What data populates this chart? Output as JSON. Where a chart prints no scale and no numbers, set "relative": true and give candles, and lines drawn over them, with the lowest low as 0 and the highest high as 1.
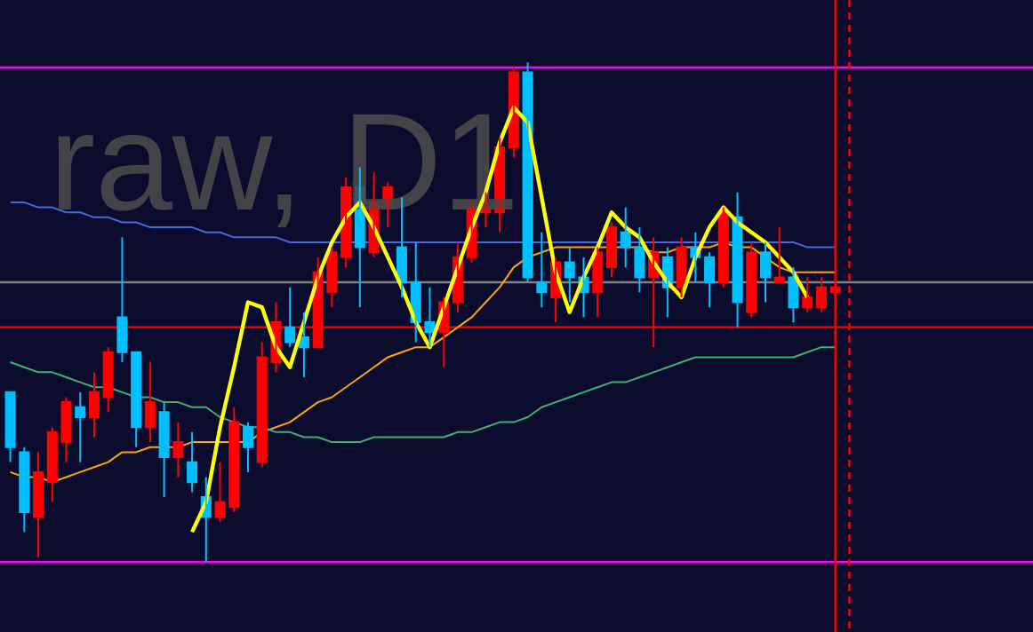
{
  "chart_data": {
    "type": "candlestick",
    "relative": true,
    "annotations": [
      "raw, D1"
    ],
    "marker": "none",
    "line_style": "solid",
    "categories": [
      null,
      null,
      null,
      null,
      null,
      null,
      null,
      null,
      null,
      null,
      null,
      null,
      null,
      null,
      null,
      null,
      null,
      null,
      null,
      null,
      null,
      null,
      null,
      null,
      null,
      null,
      null,
      null,
      null,
      null,
      null,
      null,
      null,
      null,
      null,
      null,
      null,
      null,
      null,
      null,
      null,
      null,
      null,
      null,
      null,
      null,
      null,
      null,
      null,
      null,
      null,
      null,
      null,
      null,
      null,
      null,
      null,
      null,
      null,
      null
    ],
    "ohlc": [
      [
        0.34,
        0.34,
        0.2,
        0.23
      ],
      [
        0.22,
        0.23,
        0.06,
        0.1
      ],
      [
        0.09,
        0.22,
        0.01,
        0.18
      ],
      [
        0.16,
        0.27,
        0.12,
        0.26
      ],
      [
        0.24,
        0.33,
        0.2,
        0.32
      ],
      [
        0.31,
        0.34,
        0.2,
        0.29
      ],
      [
        0.29,
        0.38,
        0.25,
        0.34
      ],
      [
        0.33,
        0.43,
        0.3,
        0.42
      ],
      [
        0.49,
        0.65,
        0.4,
        0.42
      ],
      [
        0.42,
        0.42,
        0.23,
        0.27
      ],
      [
        0.27,
        0.4,
        0.24,
        0.32
      ],
      [
        0.3,
        0.32,
        0.13,
        0.21
      ],
      [
        0.21,
        0.28,
        0.17,
        0.24
      ],
      [
        0.2,
        0.26,
        0.14,
        0.16
      ],
      [
        0.13,
        0.17,
        0,
        0.09
      ],
      [
        0.09,
        0.2,
        0.08,
        0.12
      ],
      [
        0.11,
        0.31,
        0.1,
        0.28
      ],
      [
        0.27,
        0.28,
        0.18,
        0.23
      ],
      [
        0.2,
        0.44,
        0.19,
        0.41
      ],
      [
        0.4,
        0.52,
        0.38,
        0.48
      ],
      [
        0.47,
        0.55,
        0.43,
        0.44
      ],
      [
        0.45,
        0.5,
        0.37,
        0.43
      ],
      [
        0.43,
        0.61,
        0.43,
        0.58
      ],
      [
        0.54,
        0.63,
        0.51,
        0.62
      ],
      [
        0.61,
        0.77,
        0.59,
        0.75
      ],
      [
        0.75,
        0.79,
        0.51,
        0.63
      ],
      [
        0.62,
        0.78,
        0.61,
        0.72
      ],
      [
        0.71,
        0.76,
        0.67,
        0.75
      ],
      [
        0.63,
        0.73,
        0.53,
        0.56
      ],
      [
        0.56,
        0.64,
        0.44,
        0.48
      ],
      [
        0.48,
        0.55,
        0.43,
        0.46
      ],
      [
        0.46,
        0.53,
        0.39,
        0.52
      ],
      [
        0.52,
        0.64,
        0.5,
        0.61
      ],
      [
        0.61,
        0.72,
        0.6,
        0.71
      ],
      [
        0.7,
        0.74,
        0.67,
        0.71
      ],
      [
        0.7,
        0.85,
        0.66,
        0.83
      ],
      [
        0.83,
        0.99,
        0.81,
        0.98
      ],
      [
        0.98,
        1.0,
        0.56,
        0.57
      ],
      [
        0.56,
        0.66,
        0.51,
        0.54
      ],
      [
        0.53,
        0.61,
        0.48,
        0.6
      ],
      [
        0.6,
        0.63,
        0.52,
        0.57
      ],
      [
        0.57,
        0.61,
        0.49,
        0.54
      ],
      [
        0.54,
        0.63,
        0.49,
        0.62
      ],
      [
        0.59,
        0.68,
        0.57,
        0.67
      ],
      [
        0.66,
        0.71,
        0.59,
        0.63
      ],
      [
        0.63,
        0.67,
        0.54,
        0.57
      ],
      [
        0.57,
        0.65,
        0.43,
        0.62
      ],
      [
        0.61,
        0.63,
        0.49,
        0.55
      ],
      [
        0.55,
        0.65,
        0.53,
        0.63
      ],
      [
        0.63,
        0.66,
        0.56,
        0.61
      ],
      [
        0.61,
        0.62,
        0.51,
        0.56
      ],
      [
        0.56,
        0.71,
        0.55,
        0.7
      ],
      [
        0.69,
        0.74,
        0.47,
        0.52
      ],
      [
        0.5,
        0.64,
        0.49,
        0.62
      ],
      [
        0.62,
        0.64,
        0.52,
        0.57
      ],
      [
        0.56,
        0.67,
        0.56,
        0.57
      ],
      [
        0.57,
        0.59,
        0.48,
        0.51
      ],
      [
        0.51,
        0.57,
        0.5,
        0.53
      ],
      [
        0.51,
        0.57,
        0.5,
        0.55
      ],
      [
        0.54,
        0.56,
        0.53,
        0.55
      ]
    ],
    "colors": [
      "#00bfff",
      "#00bfff",
      "#ff0000",
      "#ff0000",
      "#ff0000",
      "#00bfff",
      "#ff0000",
      "#ff0000",
      "#00bfff",
      "#00bfff",
      "#ff0000",
      "#00bfff",
      "#ff0000",
      "#00bfff",
      "#00bfff",
      "#ff0000",
      "#ff0000",
      "#00bfff",
      "#ff0000",
      "#ff0000",
      "#00bfff",
      "#00bfff",
      "#ff0000",
      "#ff0000",
      "#ff0000",
      "#00bfff",
      "#ff0000",
      "#ff0000",
      "#00bfff",
      "#00bfff",
      "#00bfff",
      "#ff0000",
      "#ff0000",
      "#ff0000",
      "#ff0000",
      "#ff0000",
      "#ff0000",
      "#00bfff",
      "#00bfff",
      "#ff0000",
      "#00bfff",
      "#00bfff",
      "#ff0000",
      "#ff0000",
      "#00bfff",
      "#00bfff",
      "#ff0000",
      "#00bfff",
      "#ff0000",
      "#00bfff",
      "#00bfff",
      "#ff0000",
      "#00bfff",
      "#ff0000",
      "#00bfff",
      "#ff0000",
      "#00bfff",
      "#ff0000",
      "#ff0000",
      "#ff0000"
    ],
    "series": [
      {
        "type": "line",
        "color": "#4169e1",
        "values": [
          0.72,
          0.72,
          0.71,
          0.71,
          0.7,
          0.7,
          0.69,
          0.69,
          0.68,
          0.68,
          0.67,
          0.67,
          0.67,
          0.67,
          0.66,
          0.66,
          0.65,
          0.65,
          0.65,
          0.65,
          0.64,
          0.64,
          0.64,
          0.64,
          0.64,
          0.64,
          0.64,
          0.64,
          0.64,
          0.64,
          0.64,
          0.64,
          0.64,
          0.64,
          0.64,
          0.64,
          0.64,
          0.64,
          0.64,
          0.64,
          0.64,
          0.64,
          0.64,
          0.64,
          0.64,
          0.64,
          0.64,
          0.64,
          0.64,
          0.64,
          0.64,
          0.64,
          0.64,
          0.64,
          0.64,
          0.64,
          0.64,
          0.63,
          0.63,
          0.63
        ]
      },
      {
        "type": "line",
        "color": "#ffa500",
        "values": [
          0.18,
          0.17,
          0.17,
          0.16,
          0.17,
          0.18,
          0.19,
          0.2,
          0.22,
          0.22,
          0.23,
          0.23,
          0.23,
          0.24,
          0.24,
          0.24,
          0.24,
          0.24,
          0.26,
          0.27,
          0.28,
          0.3,
          0.32,
          0.33,
          0.35,
          0.37,
          0.39,
          0.41,
          0.42,
          0.43,
          0.43,
          0.45,
          0.47,
          0.49,
          0.52,
          0.55,
          0.59,
          0.61,
          0.62,
          0.63,
          0.63,
          0.63,
          0.63,
          0.63,
          0.63,
          0.63,
          0.62,
          0.62,
          0.63,
          0.63,
          0.63,
          0.64,
          0.63,
          0.63,
          0.61,
          0.59,
          0.58,
          0.58,
          0.58,
          0.58
        ]
      },
      {
        "type": "line",
        "color": "#3cb371",
        "values": [
          0.4,
          0.39,
          0.38,
          0.38,
          0.37,
          0.36,
          0.35,
          0.35,
          0.34,
          0.33,
          0.33,
          0.32,
          0.32,
          0.31,
          0.31,
          0.29,
          0.28,
          0.27,
          0.27,
          0.26,
          0.26,
          0.25,
          0.25,
          0.24,
          0.24,
          0.24,
          0.25,
          0.25,
          0.25,
          0.25,
          0.25,
          0.25,
          0.26,
          0.26,
          0.27,
          0.28,
          0.28,
          0.29,
          0.31,
          0.32,
          0.33,
          0.34,
          0.35,
          0.36,
          0.36,
          0.37,
          0.38,
          0.39,
          0.4,
          0.41,
          0.41,
          0.41,
          0.41,
          0.41,
          0.41,
          0.41,
          0.41,
          0.42,
          0.43,
          0.43
        ]
      },
      {
        "type": "line",
        "color": "#ffff00",
        "values": [
          null,
          null,
          null,
          null,
          null,
          null,
          null,
          null,
          null,
          null,
          null,
          null,
          null,
          0.06,
          0.12,
          0.27,
          0.39,
          0.52,
          0.51,
          0.43,
          0.39,
          0.48,
          0.57,
          0.64,
          0.69,
          0.72,
          0.67,
          0.61,
          0.55,
          0.48,
          0.43,
          0.51,
          0.59,
          0.67,
          0.74,
          0.84,
          0.91,
          0.88,
          0.73,
          0.58,
          0.5,
          0.57,
          0.63,
          0.7,
          0.67,
          0.65,
          0.6,
          0.56,
          0.53,
          0.61,
          0.67,
          0.71,
          0.68,
          0.66,
          0.64,
          0.61,
          0.58,
          0.53,
          null,
          null
        ]
      }
    ],
    "ref_lines": [
      {
        "axis": "y",
        "value": 0.99,
        "color": "#ff00ff"
      },
      {
        "axis": "y",
        "value": 0,
        "color": "#ff00ff"
      },
      {
        "axis": "y",
        "value": 0.56,
        "color": "#808080"
      },
      {
        "axis": "y",
        "value": 0.47,
        "color": "#ff0000"
      }
    ]
  }
}
